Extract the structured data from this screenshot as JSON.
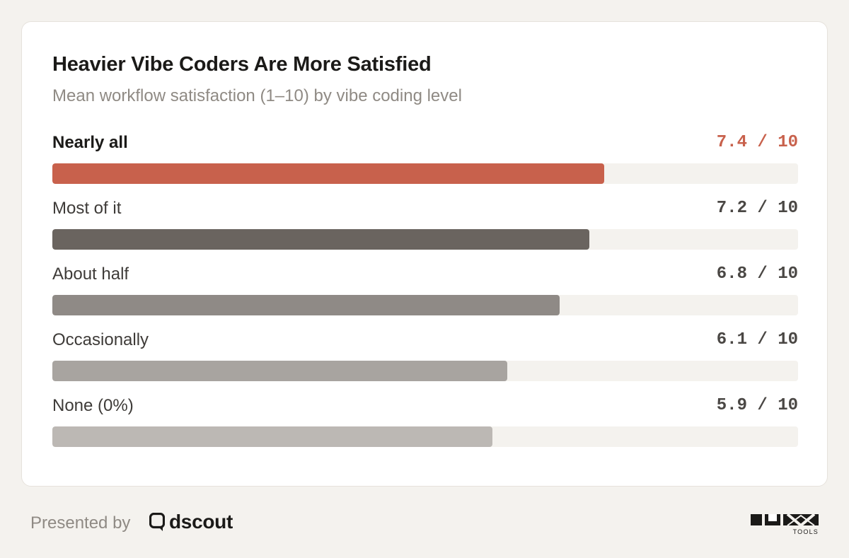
{
  "chart_data": {
    "type": "bar",
    "orientation": "horizontal",
    "title": "Heavier Vibe Coders Are More Satisfied",
    "subtitle": "Mean workflow satisfaction (1–10) by vibe coding level",
    "categories": [
      "Nearly all",
      "Most of it",
      "About half",
      "Occasionally",
      "None (0%)"
    ],
    "values": [
      7.4,
      7.2,
      6.8,
      6.1,
      5.9
    ],
    "value_labels": [
      "7.4 / 10",
      "7.2 / 10",
      "6.8 / 10",
      "6.1 / 10",
      "5.9 / 10"
    ],
    "xlim": [
      0,
      10
    ],
    "grid": false,
    "colors": [
      "#c8614c",
      "#6a645f",
      "#8f8a86",
      "#a8a4a0",
      "#bcb8b4"
    ],
    "highlight_color": "#c8614c",
    "track_color": "#f4f2ee"
  },
  "footer": {
    "presented_by": "Presented by",
    "brand": "dscout",
    "brand_icon": "dscout-logo-icon",
    "partner_logo": "ux-tools-logo",
    "partner_logo_text": "TOOLS"
  }
}
